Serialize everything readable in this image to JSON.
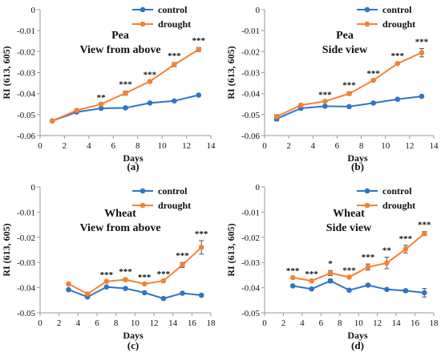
{
  "colors": {
    "control": "#2e75c7",
    "drought": "#f58231",
    "axis": "#999999",
    "errorbar": "#555555"
  },
  "chart_data": [
    {
      "type": "line",
      "caption": "(a)",
      "title_lines": [
        "Pea",
        "View from above"
      ],
      "xlabel": "Days",
      "ylabel": "RI (613, 605)",
      "xlim": [
        0,
        14
      ],
      "xticks": [
        0,
        2,
        4,
        6,
        8,
        10,
        12,
        14
      ],
      "ylim": [
        -0.06,
        0
      ],
      "yticks": [
        0,
        -0.01,
        -0.02,
        -0.03,
        -0.04,
        -0.05,
        -0.06
      ],
      "ytick_labels": [
        "0",
        "-0.01",
        "-0.02",
        "-0.03",
        "-0.04",
        "-0.05",
        "-0.06"
      ],
      "legend_position": "top-right",
      "series": [
        {
          "name": "control",
          "x": [
            1,
            3,
            5,
            7,
            9,
            11,
            13
          ],
          "values": [
            -0.053,
            -0.0488,
            -0.047,
            -0.0468,
            -0.0445,
            -0.0435,
            -0.0407
          ],
          "err": [
            0,
            0,
            0,
            0,
            0,
            0,
            0
          ]
        },
        {
          "name": "drought",
          "x": [
            1,
            3,
            5,
            7,
            9,
            11,
            13
          ],
          "values": [
            -0.053,
            -0.048,
            -0.045,
            -0.0398,
            -0.0342,
            -0.0262,
            -0.019
          ],
          "err": [
            0,
            0,
            0,
            0.001,
            0,
            0.001,
            0.001
          ]
        }
      ],
      "annotations": [
        "",
        "",
        "**",
        "***",
        "***",
        "***",
        "***"
      ]
    },
    {
      "type": "line",
      "caption": "(b)",
      "title_lines": [
        "Pea",
        "Side view"
      ],
      "xlabel": "Days",
      "ylabel": "RI (613, 605)",
      "xlim": [
        0,
        14
      ],
      "xticks": [
        0,
        2,
        4,
        6,
        8,
        10,
        12,
        14
      ],
      "ylim": [
        -0.06,
        0
      ],
      "yticks": [
        0,
        -0.01,
        -0.02,
        -0.03,
        -0.04,
        -0.05,
        -0.06
      ],
      "ytick_labels": [
        "0",
        "-0.01",
        "-0.02",
        "-0.03",
        "-0.04",
        "-0.05",
        "-0.06"
      ],
      "legend_position": "top-right",
      "series": [
        {
          "name": "control",
          "x": [
            1,
            3,
            5,
            7,
            9,
            11,
            13
          ],
          "values": [
            -0.052,
            -0.047,
            -0.046,
            -0.0462,
            -0.0445,
            -0.0427,
            -0.0413
          ],
          "err": [
            0.001,
            0,
            0,
            0,
            0,
            0,
            0
          ]
        },
        {
          "name": "drought",
          "x": [
            1,
            3,
            5,
            7,
            9,
            11,
            13
          ],
          "values": [
            -0.051,
            -0.0455,
            -0.0437,
            -0.04,
            -0.0337,
            -0.0257,
            -0.0205
          ],
          "err": [
            0.001,
            0.0006,
            0,
            0.0008,
            0,
            0.0005,
            0.002
          ]
        }
      ],
      "annotations": [
        "",
        "",
        "***",
        "***",
        "***",
        "***",
        "***"
      ]
    },
    {
      "type": "line",
      "caption": "(c)",
      "title_lines": [
        "Wheat",
        "View from above"
      ],
      "xlabel": "Days",
      "ylabel": "RI (613, 605)",
      "xlim": [
        0,
        18
      ],
      "xticks": [
        0,
        2,
        4,
        6,
        8,
        10,
        12,
        14,
        16,
        18
      ],
      "ylim": [
        -0.05,
        0
      ],
      "yticks": [
        0,
        -0.01,
        -0.02,
        -0.03,
        -0.04,
        -0.05
      ],
      "ytick_labels": [
        "0",
        "-0.01",
        "-0.02",
        "-0.03",
        "-0.04",
        "-0.05"
      ],
      "legend_position": "top-right",
      "series": [
        {
          "name": "control",
          "x": [
            3,
            5,
            7,
            9,
            11,
            13,
            15,
            17
          ],
          "values": [
            -0.0408,
            -0.0437,
            -0.0397,
            -0.0403,
            -0.042,
            -0.0443,
            -0.0422,
            -0.043
          ],
          "err": [
            0,
            0,
            0,
            0,
            0,
            0,
            0,
            0
          ]
        },
        {
          "name": "drought",
          "x": [
            3,
            5,
            7,
            9,
            11,
            13,
            15,
            17
          ],
          "values": [
            -0.0385,
            -0.0425,
            -0.0375,
            -0.0368,
            -0.0385,
            -0.0373,
            -0.031,
            -0.024
          ],
          "err": [
            0,
            0,
            0,
            0.0005,
            0,
            0,
            0.001,
            0.0027
          ]
        }
      ],
      "annotations": [
        "",
        "",
        "***",
        "***",
        "***",
        "***",
        "***",
        "***"
      ]
    },
    {
      "type": "line",
      "caption": "(d)",
      "title_lines": [
        "Wheat",
        "Side view"
      ],
      "xlabel": "Days",
      "ylabel": "RI (613, 605)",
      "xlim": [
        0,
        18
      ],
      "xticks": [
        0,
        2,
        4,
        6,
        8,
        10,
        12,
        14,
        16,
        18
      ],
      "ylim": [
        -0.05,
        0
      ],
      "yticks": [
        0,
        -0.01,
        -0.02,
        -0.03,
        -0.04,
        -0.05
      ],
      "ytick_labels": [
        "0",
        "-0.01",
        "-0.02",
        "-0.03",
        "-0.04",
        "-0.05"
      ],
      "legend_position": "top-right",
      "series": [
        {
          "name": "control",
          "x": [
            3,
            5,
            7,
            9,
            11,
            13,
            15,
            17
          ],
          "values": [
            -0.0393,
            -0.0405,
            -0.0373,
            -0.041,
            -0.039,
            -0.0407,
            -0.0412,
            -0.042
          ],
          "err": [
            0,
            0,
            0.0007,
            0,
            0.0005,
            0,
            0.0006,
            0.0017
          ]
        },
        {
          "name": "drought",
          "x": [
            3,
            5,
            7,
            9,
            11,
            13,
            15,
            17
          ],
          "values": [
            -0.036,
            -0.0373,
            -0.0342,
            -0.0358,
            -0.0318,
            -0.0302,
            -0.0247,
            -0.0185
          ],
          "err": [
            0,
            0,
            0.001,
            0,
            0.0012,
            0.0023,
            0.0015,
            0.0008
          ]
        }
      ],
      "annotations": [
        "***",
        "***",
        "*",
        "***",
        "***",
        "**",
        "***",
        "***"
      ]
    }
  ]
}
